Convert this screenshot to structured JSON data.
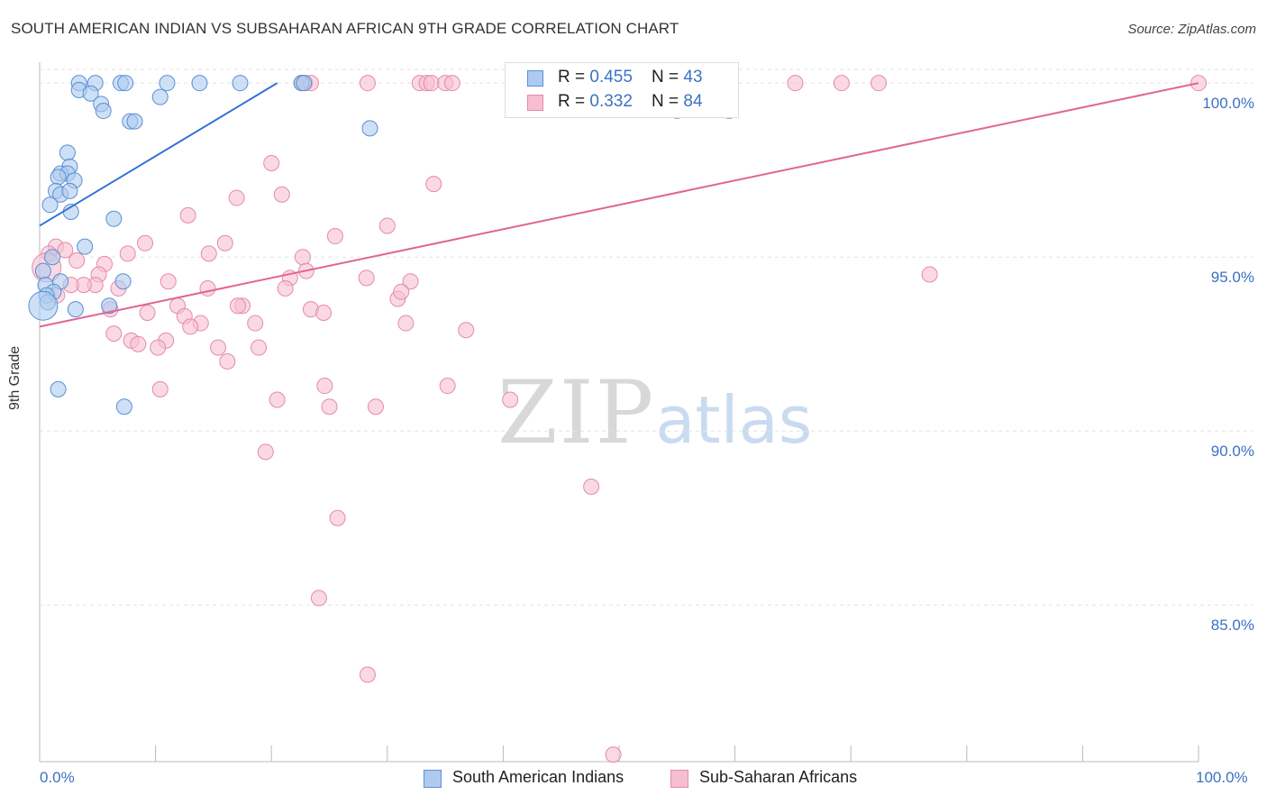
{
  "header": {
    "title": "SOUTH AMERICAN INDIAN VS SUBSAHARAN AFRICAN 9TH GRADE CORRELATION CHART",
    "source": "Source: ZipAtlas.com"
  },
  "legend": {
    "series1": {
      "r_label": "R = ",
      "r_value": "0.455",
      "n_label": "N = ",
      "n_value": "43"
    },
    "series2": {
      "r_label": "R = ",
      "r_value": "0.332",
      "n_label": "N = ",
      "n_value": "84"
    }
  },
  "bottom_legend": {
    "series1": "South American Indians",
    "series2": "Sub-Saharan Africans"
  },
  "watermark": {
    "zip": "ZIP",
    "atlas": "atlas"
  },
  "colors": {
    "blue_fill": "#aecbef",
    "blue_stroke": "#5b8fd4",
    "blue_line": "#2f74d0",
    "pink_fill": "#f6bfd0",
    "pink_stroke": "#e58aaa",
    "pink_line": "#e06592",
    "tick_text": "#3b72c4",
    "grid": "#e3e3e3"
  },
  "chart_data": {
    "type": "scatter",
    "title": "SOUTH AMERICAN INDIAN VS SUBSAHARAN AFRICAN 9TH GRADE CORRELATION CHART",
    "xlabel": "",
    "ylabel": "9th Grade",
    "xlim": [
      0,
      100
    ],
    "ylim": [
      80.5,
      100.6
    ],
    "x_tick_labels": [
      "0.0%",
      "100.0%"
    ],
    "y_ticks": [
      {
        "value": 100,
        "label": "100.0%"
      },
      {
        "value": 95,
        "label": "95.0%"
      },
      {
        "value": 90,
        "label": "90.0%"
      },
      {
        "value": 85,
        "label": "85.0%"
      }
    ],
    "grid": true,
    "legend_position": "top-center",
    "series": [
      {
        "name": "South American Indians",
        "r": 0.455,
        "n": 43,
        "trend": {
          "x": [
            0,
            20.5
          ],
          "y": [
            95.9,
            100.0
          ]
        },
        "points": [
          [
            3.4,
            100
          ],
          [
            4.8,
            100
          ],
          [
            7.0,
            100
          ],
          [
            7.4,
            100
          ],
          [
            11.0,
            100
          ],
          [
            13.8,
            100
          ],
          [
            17.3,
            100
          ],
          [
            22.6,
            100
          ],
          [
            3.4,
            99.8
          ],
          [
            4.4,
            99.7
          ],
          [
            10.4,
            99.6
          ],
          [
            5.3,
            99.4
          ],
          [
            5.5,
            99.2
          ],
          [
            7.8,
            98.9
          ],
          [
            8.2,
            98.9
          ],
          [
            28.5,
            98.7
          ],
          [
            2.4,
            98.0
          ],
          [
            2.6,
            97.6
          ],
          [
            1.8,
            97.4
          ],
          [
            2.4,
            97.4
          ],
          [
            1.6,
            97.3
          ],
          [
            3.0,
            97.2
          ],
          [
            1.4,
            96.9
          ],
          [
            1.8,
            96.8
          ],
          [
            2.6,
            96.9
          ],
          [
            0.9,
            96.5
          ],
          [
            2.7,
            96.3
          ],
          [
            6.4,
            96.1
          ],
          [
            3.9,
            95.3
          ],
          [
            1.1,
            95.0
          ],
          [
            0.3,
            94.6
          ],
          [
            0.5,
            94.2
          ],
          [
            1.8,
            94.3
          ],
          [
            7.2,
            94.3
          ],
          [
            1.2,
            94.0
          ],
          [
            0.6,
            93.9
          ],
          [
            0.7,
            93.7
          ],
          [
            0.3,
            93.6
          ],
          [
            3.1,
            93.5
          ],
          [
            6.0,
            93.6
          ],
          [
            1.6,
            91.2
          ],
          [
            7.3,
            90.7
          ],
          [
            22.8,
            100
          ]
        ]
      },
      {
        "name": "Sub-Saharan Africans",
        "r": 0.332,
        "n": 84,
        "trend": {
          "x": [
            0,
            100
          ],
          "y": [
            93.0,
            100.0
          ]
        },
        "points": [
          [
            22.6,
            100
          ],
          [
            22.9,
            100
          ],
          [
            23.4,
            100
          ],
          [
            28.3,
            100
          ],
          [
            32.8,
            100
          ],
          [
            33.4,
            100
          ],
          [
            33.8,
            100
          ],
          [
            35.0,
            100
          ],
          [
            35.6,
            100
          ],
          [
            45.1,
            100
          ],
          [
            65.2,
            100
          ],
          [
            69.2,
            100
          ],
          [
            72.4,
            100
          ],
          [
            100,
            100
          ],
          [
            59.5,
            99.2
          ],
          [
            55.0,
            99.2
          ],
          [
            20.0,
            97.7
          ],
          [
            34.0,
            97.1
          ],
          [
            20.9,
            96.8
          ],
          [
            17.0,
            96.7
          ],
          [
            12.8,
            96.2
          ],
          [
            25.5,
            95.6
          ],
          [
            30.0,
            95.9
          ],
          [
            9.1,
            95.4
          ],
          [
            16.0,
            95.4
          ],
          [
            1.4,
            95.3
          ],
          [
            0.8,
            95.1
          ],
          [
            14.6,
            95.1
          ],
          [
            7.6,
            95.1
          ],
          [
            22.7,
            95.0
          ],
          [
            3.2,
            94.9
          ],
          [
            5.6,
            94.8
          ],
          [
            0.6,
            94.7
          ],
          [
            5.1,
            94.5
          ],
          [
            28.2,
            94.4
          ],
          [
            21.6,
            94.4
          ],
          [
            11.1,
            94.3
          ],
          [
            4.8,
            94.2
          ],
          [
            3.8,
            94.2
          ],
          [
            32.0,
            94.3
          ],
          [
            14.5,
            94.1
          ],
          [
            21.2,
            94.1
          ],
          [
            2.7,
            94.2
          ],
          [
            1.5,
            93.9
          ],
          [
            76.8,
            94.5
          ],
          [
            30.9,
            93.8
          ],
          [
            17.5,
            93.6
          ],
          [
            23.4,
            93.5
          ],
          [
            11.9,
            93.6
          ],
          [
            24.5,
            93.4
          ],
          [
            17.1,
            93.6
          ],
          [
            9.3,
            93.4
          ],
          [
            6.1,
            93.5
          ],
          [
            12.5,
            93.3
          ],
          [
            13.9,
            93.1
          ],
          [
            18.6,
            93.1
          ],
          [
            31.6,
            93.1
          ],
          [
            6.4,
            92.8
          ],
          [
            7.9,
            92.6
          ],
          [
            8.5,
            92.5
          ],
          [
            10.9,
            92.6
          ],
          [
            10.2,
            92.4
          ],
          [
            15.4,
            92.4
          ],
          [
            18.9,
            92.4
          ],
          [
            16.2,
            92.0
          ],
          [
            10.4,
            91.2
          ],
          [
            24.6,
            91.3
          ],
          [
            35.2,
            91.3
          ],
          [
            20.5,
            90.9
          ],
          [
            25.0,
            90.7
          ],
          [
            29.0,
            90.7
          ],
          [
            40.6,
            90.9
          ],
          [
            19.5,
            89.4
          ],
          [
            47.6,
            88.4
          ],
          [
            25.7,
            87.5
          ],
          [
            24.1,
            85.2
          ],
          [
            28.3,
            83.0
          ],
          [
            49.5,
            80.7
          ],
          [
            36.8,
            92.9
          ],
          [
            23.0,
            94.6
          ],
          [
            31.2,
            94.0
          ],
          [
            2.2,
            95.2
          ],
          [
            6.8,
            94.1
          ],
          [
            13.0,
            93.0
          ]
        ]
      }
    ]
  }
}
